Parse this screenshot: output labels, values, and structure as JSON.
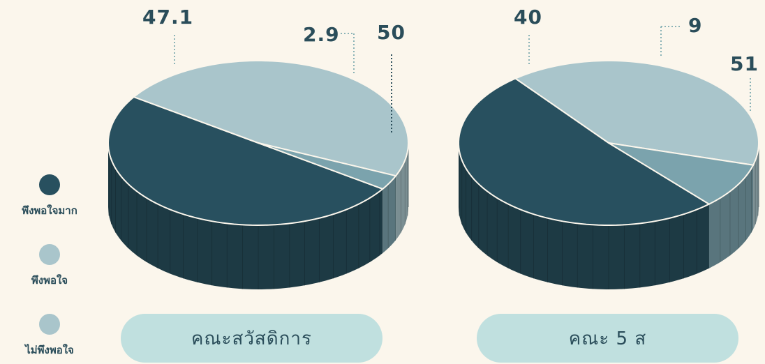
{
  "legend": [
    {
      "label": "พึงพอใจมาก",
      "color": "#28505f"
    },
    {
      "label": "พึงพอใจ",
      "color": "#a9c5cb"
    },
    {
      "label": "ไม่พึงพอใจ",
      "color": "#a9c5cb"
    }
  ],
  "chart_data": [
    {
      "type": "pie",
      "title": "คณะสวัสดิการ",
      "categories": [
        "พึงพอใจมาก",
        "พึงพอใจ",
        "ไม่พึงพอใจ"
      ],
      "values": [
        50,
        47.1,
        2.9
      ],
      "labels": [
        "50",
        "47.1",
        "2.9"
      ],
      "colors": [
        "#28505f",
        "#a9c5cb",
        "#7ba3ad"
      ]
    },
    {
      "type": "pie",
      "title": "คณะ 5 ส",
      "categories": [
        "พึงพอใจมาก",
        "พึงพอใจ",
        "ไม่พึงพอใจ"
      ],
      "values": [
        51,
        40,
        9
      ],
      "labels": [
        "51",
        "40",
        "9"
      ],
      "colors": [
        "#28505f",
        "#a9c5cb",
        "#7ba3ad"
      ]
    }
  ]
}
